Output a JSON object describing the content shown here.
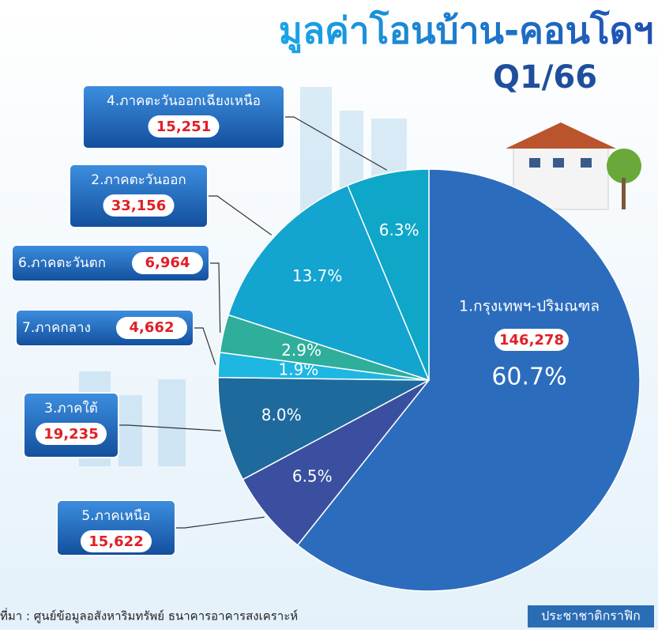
{
  "chart_data": {
    "type": "pie",
    "title": "มูลค่าโอนบ้าน-คอนโดฯ",
    "subtitle": "Q1/66",
    "categories": [
      "1.กรุงเทพฯ-ปริมณฑล",
      "5.ภาคเหนือ",
      "3.ภาคใต้",
      "7.ภาคกลาง",
      "6.ภาคตะวันตก",
      "2.ภาคตะวันออก",
      "4.ภาคตะวันออกเฉียงเหนือ"
    ],
    "values": [
      60.7,
      6.5,
      8.0,
      1.9,
      2.9,
      13.7,
      6.3
    ],
    "value_labels": [
      "60.7%",
      "6.5%",
      "8.0%",
      "1.9%",
      "2.9%",
      "13.7%",
      "6.3%"
    ],
    "amounts": [
      146278,
      15622,
      19235,
      4662,
      6964,
      33156,
      15251
    ],
    "amount_labels": [
      "146,278",
      "15,622",
      "19,235",
      "4,662",
      "6,964",
      "33,156",
      "15,251"
    ],
    "colors": [
      "#2c6cbc",
      "#3a4f9f",
      "#1e6a9d",
      "#1db7e2",
      "#2fae9c",
      "#13a4cf",
      "#0ea7c8"
    ],
    "source": "ที่มา : ศูนย์ข้อมูลอสังหาริมทรัพย์ ธนาคารอาคารสงเคราะห์",
    "credit": "ประชาชาติกราฟิก"
  }
}
